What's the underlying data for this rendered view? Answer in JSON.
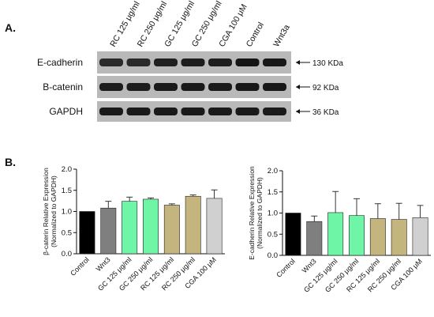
{
  "panels": {
    "a": {
      "letter": "A.",
      "lane_labels": [
        "RC 125 μg/ml",
        "RC 250 μg/ml",
        "GC 125 μg/ml",
        "GC 250 μg/ml",
        "CGA 100 μM",
        "Control",
        "Wnt3a"
      ],
      "blots": [
        {
          "name": "E-cadherin",
          "kda": "130 KDa",
          "band_intensity": [
            0.55,
            0.55,
            0.75,
            0.8,
            0.8,
            0.95,
            0.9
          ]
        },
        {
          "name": "B-catenin",
          "kda": "92 KDa",
          "band_intensity": [
            0.8,
            0.8,
            0.85,
            0.85,
            0.85,
            0.9,
            0.9
          ]
        },
        {
          "name": "GAPDH",
          "kda": "36 KDa",
          "band_intensity": [
            0.85,
            0.85,
            0.85,
            0.85,
            0.85,
            0.85,
            0.85
          ]
        }
      ]
    },
    "b": {
      "letter": "B."
    }
  },
  "chart_data": [
    {
      "type": "bar",
      "categories": [
        "Control",
        "Wnt3",
        "GC 125 μg/ml",
        "GC 250 μg/ml",
        "RC 125 μg/ml",
        "RC 250 μg/ml",
        "CGA 100 μM"
      ],
      "values": [
        1.0,
        1.08,
        1.24,
        1.29,
        1.15,
        1.36,
        1.31
      ],
      "errors": [
        0,
        0.16,
        0.1,
        0.03,
        0.03,
        0.03,
        0.2
      ],
      "colors": [
        "#000000",
        "#7f7f7f",
        "#6ff5a6",
        "#6ff5a6",
        "#c4b47d",
        "#c4b47d",
        "#d0d0d0"
      ],
      "ylabel_line1": "β-caterin Relative Expression",
      "ylabel_line2": "(Normalized to GAPDH)",
      "ylim": [
        0,
        2.0
      ],
      "yticks": [
        "0.0",
        "0.5",
        "1.0",
        "1.5",
        "2.0"
      ]
    },
    {
      "type": "bar",
      "categories": [
        "Control",
        "Wnt3",
        "GC 125 μg/ml",
        "GC 250 μg/ml",
        "RC 125 μg/ml",
        "RC 250 μg/ml",
        "CGA 100 μM"
      ],
      "values": [
        1.0,
        0.8,
        1.01,
        0.94,
        0.87,
        0.85,
        0.89
      ],
      "errors": [
        0,
        0.13,
        0.5,
        0.4,
        0.35,
        0.38,
        0.29
      ],
      "colors": [
        "#000000",
        "#7f7f7f",
        "#6ff5a6",
        "#6ff5a6",
        "#c4b47d",
        "#c4b47d",
        "#d0d0d0"
      ],
      "ylabel_line1": "E-cadherin Relative Expression",
      "ylabel_line2": "(Normalized to GAPDH)",
      "ylim": [
        0,
        2.0
      ],
      "yticks": [
        "0.0",
        "0.5",
        "1.0",
        "1.5",
        "2.0"
      ]
    }
  ]
}
